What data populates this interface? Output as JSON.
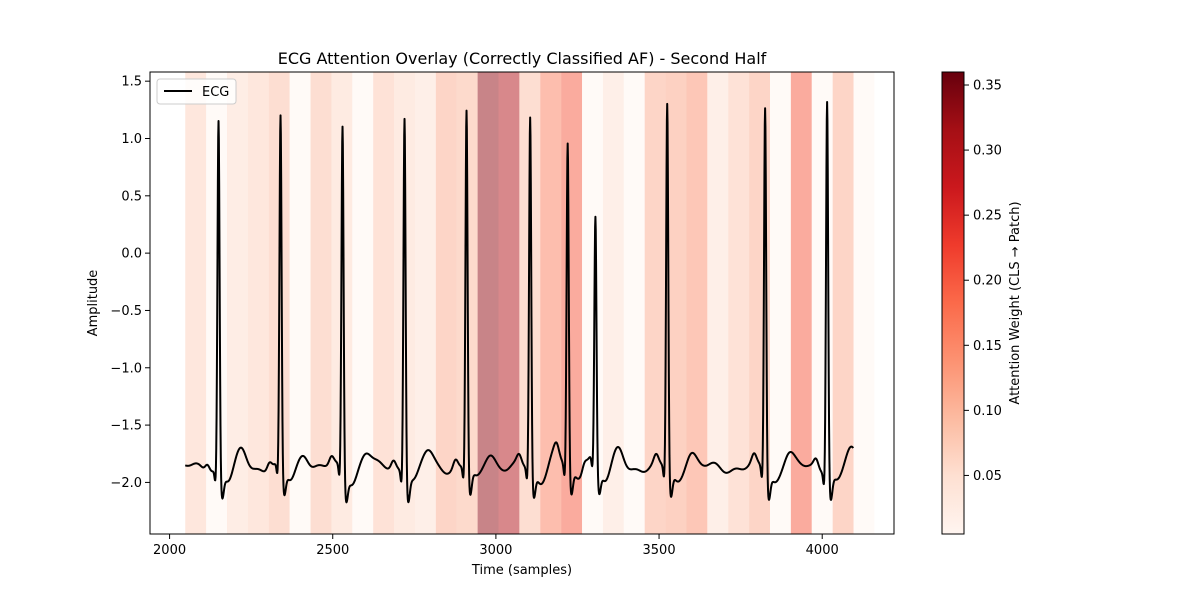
{
  "chart_data": {
    "type": "line",
    "title": "ECG Attention Overlay (Correctly Classified AF) - Second Half",
    "xlabel": "Time (samples)",
    "ylabel": "Amplitude",
    "xlim": [
      1940,
      4220
    ],
    "ylim": [
      -2.45,
      1.58
    ],
    "xticks": [
      2000,
      2500,
      3000,
      3500,
      4000
    ],
    "yticks": [
      1.5,
      1.0,
      0.5,
      0.0,
      -0.5,
      -1.0,
      -1.5,
      -2.0
    ],
    "ytick_labels": [
      "1.5",
      "1.0",
      "0.5",
      "0.0",
      "−0.5",
      "−1.0",
      "−1.5",
      "−2.0"
    ],
    "grid": false,
    "legend": {
      "position": "top-left",
      "entries": [
        "ECG"
      ]
    },
    "series": [
      {
        "name": "ECG",
        "color": "#000000",
        "baseline": -1.87,
        "beats": [
          {
            "x": 2150,
            "peak": 1.19
          },
          {
            "x": 2340,
            "peak": 1.19
          },
          {
            "x": 2530,
            "peak": 1.14
          },
          {
            "x": 2720,
            "peak": 1.25
          },
          {
            "x": 2910,
            "peak": 1.27
          },
          {
            "x": 3105,
            "peak": 1.22
          },
          {
            "x": 3220,
            "peak": 0.97
          },
          {
            "x": 3305,
            "peak": 0.26
          },
          {
            "x": 3525,
            "peak": 1.33
          },
          {
            "x": 3825,
            "peak": 1.31
          },
          {
            "x": 4015,
            "peak": 1.4
          }
        ],
        "start_x": 2048,
        "end_x": 4095
      }
    ],
    "attention": {
      "patch_start": 2048,
      "patch_size": 64,
      "weights": [
        0.07,
        0.005,
        0.055,
        0.07,
        0.09,
        0.005,
        0.09,
        0.06,
        0.005,
        0.08,
        0.06,
        0.05,
        0.11,
        0.1,
        0.33,
        0.3,
        0.09,
        0.16,
        0.2,
        0.005,
        0.05,
        0.005,
        0.11,
        0.12,
        0.14,
        0.05,
        0.08,
        0.11,
        0.005,
        0.2,
        0.005,
        0.11,
        0.005
      ]
    },
    "colorbar": {
      "label": "Attention Weight (CLS → Patch)",
      "range": [
        0.005,
        0.36
      ],
      "ticks": [
        0.05,
        0.1,
        0.15,
        0.2,
        0.25,
        0.3,
        0.35
      ],
      "tick_labels": [
        "0.05",
        "0.10",
        "0.15",
        "0.20",
        "0.25",
        "0.30",
        "0.35"
      ],
      "colormap": [
        "#fff5f0",
        "#fee0d2",
        "#fcbba1",
        "#fc9272",
        "#fb6a4a",
        "#ef3b2c",
        "#cb181d",
        "#a50f15",
        "#67000d"
      ]
    }
  }
}
